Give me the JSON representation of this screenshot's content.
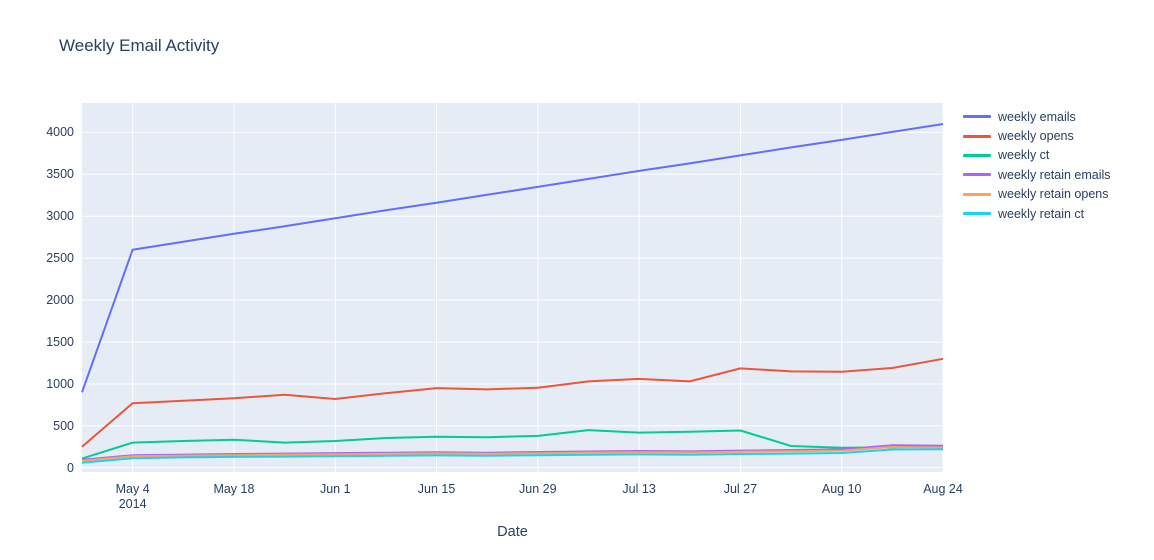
{
  "page": {
    "background": "#ffffff",
    "text_color": "#2a3f5f"
  },
  "chart_data": {
    "type": "line",
    "title": "Weekly Email Activity",
    "xlabel": "Date",
    "ylabel": "",
    "plot_bgcolor": "#e5ecf6",
    "grid_color": "#ffffff",
    "grid": true,
    "legend_position": "right",
    "ylim": [
      0,
      4100
    ],
    "yaxis_range": [
      -50,
      4350
    ],
    "yticks": [
      0,
      500,
      1000,
      1500,
      2000,
      2500,
      3000,
      3500,
      4000
    ],
    "x": [
      "2014-04-27",
      "2014-05-04",
      "2014-05-11",
      "2014-05-18",
      "2014-05-25",
      "2014-06-01",
      "2014-06-08",
      "2014-06-15",
      "2014-06-22",
      "2014-06-29",
      "2014-07-06",
      "2014-07-13",
      "2014-07-20",
      "2014-07-27",
      "2014-08-03",
      "2014-08-10",
      "2014-08-17",
      "2014-08-24"
    ],
    "xticks": [
      {
        "index": 1,
        "label": "May 4",
        "sublabel": "2014"
      },
      {
        "index": 3,
        "label": "May 18",
        "sublabel": ""
      },
      {
        "index": 5,
        "label": "Jun 1",
        "sublabel": ""
      },
      {
        "index": 7,
        "label": "Jun 15",
        "sublabel": ""
      },
      {
        "index": 9,
        "label": "Jun 29",
        "sublabel": ""
      },
      {
        "index": 11,
        "label": "Jul 13",
        "sublabel": ""
      },
      {
        "index": 13,
        "label": "Jul 27",
        "sublabel": ""
      },
      {
        "index": 15,
        "label": "Aug 10",
        "sublabel": ""
      },
      {
        "index": 17,
        "label": "Aug 24",
        "sublabel": ""
      }
    ],
    "series": [
      {
        "name": "weekly emails",
        "color": "#636efa",
        "values": [
          900,
          2600,
          2695,
          2790,
          2880,
          2975,
          3070,
          3160,
          3255,
          3350,
          3445,
          3540,
          3630,
          3725,
          3820,
          3910,
          4005,
          4100
        ]
      },
      {
        "name": "weekly opens",
        "color": "#ef553b",
        "values": [
          250,
          770,
          800,
          830,
          870,
          820,
          890,
          950,
          935,
          955,
          1030,
          1060,
          1030,
          1185,
          1150,
          1145,
          1190,
          1300
        ]
      },
      {
        "name": "weekly ct",
        "color": "#00cc96",
        "values": [
          110,
          300,
          320,
          335,
          300,
          320,
          355,
          370,
          365,
          380,
          450,
          420,
          430,
          445,
          260,
          240,
          245,
          255
        ]
      },
      {
        "name": "weekly retain emails",
        "color": "#ab63fa",
        "values": [
          95,
          150,
          158,
          165,
          170,
          175,
          180,
          185,
          180,
          188,
          195,
          200,
          196,
          205,
          212,
          220,
          268,
          262
        ]
      },
      {
        "name": "weekly retain opens",
        "color": "#ffa15a",
        "values": [
          85,
          138,
          146,
          152,
          157,
          162,
          167,
          172,
          167,
          174,
          181,
          186,
          182,
          192,
          198,
          205,
          248,
          242
        ]
      },
      {
        "name": "weekly retain ct",
        "color": "#19d3f3",
        "values": [
          60,
          115,
          124,
          130,
          134,
          139,
          143,
          148,
          144,
          150,
          155,
          160,
          156,
          165,
          170,
          176,
          218,
          222
        ]
      }
    ]
  }
}
